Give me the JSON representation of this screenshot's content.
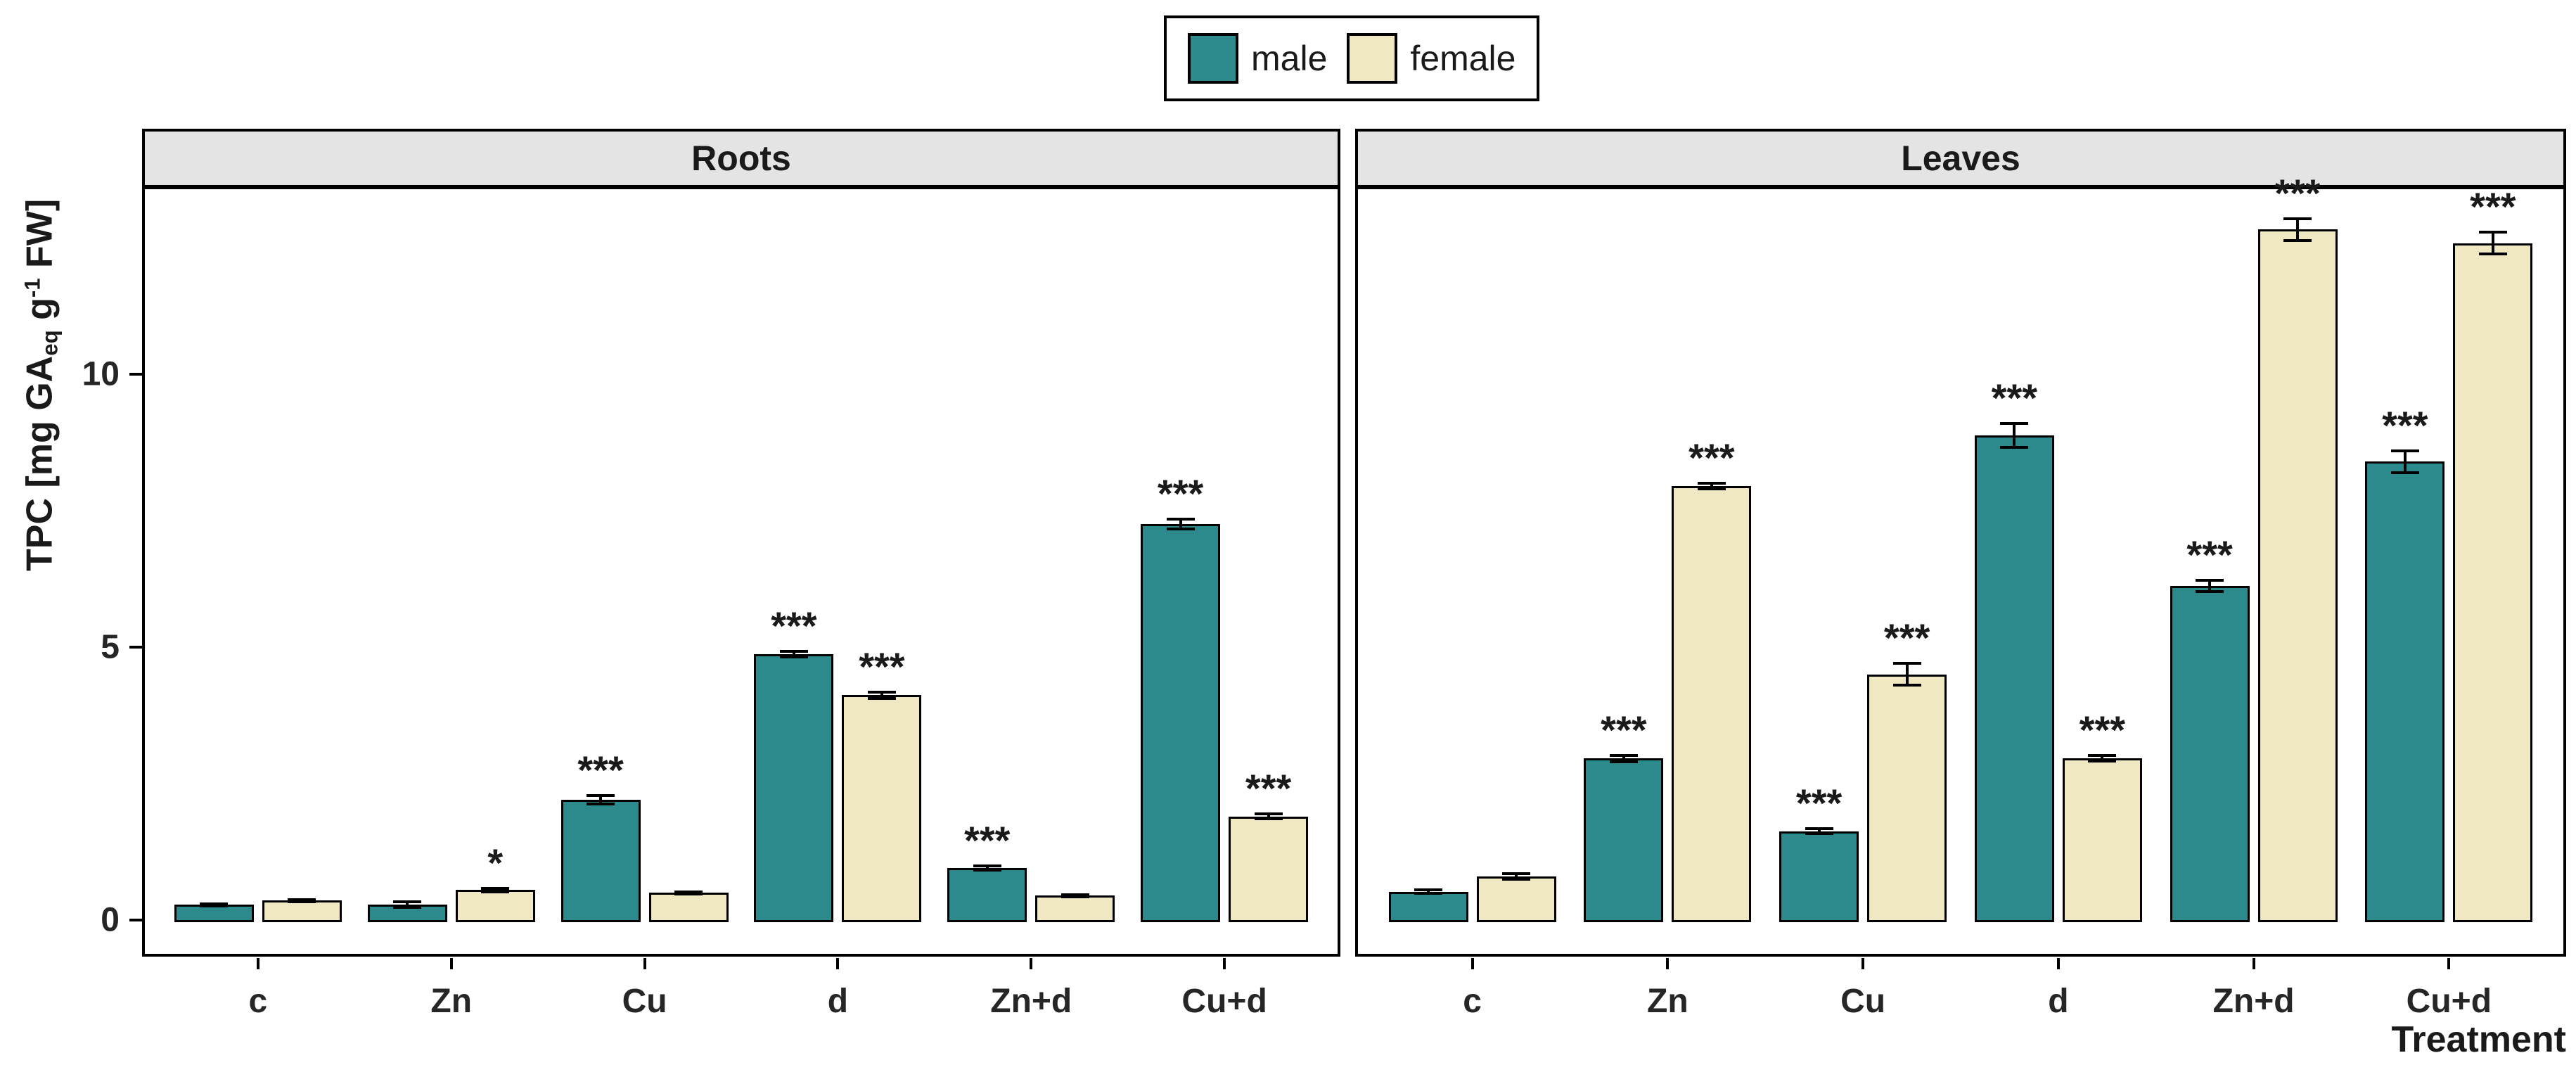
{
  "chart_data": {
    "type": "bar",
    "subtype": "grouped-faceted-bar-with-errorbars",
    "facets": [
      "Roots",
      "Leaves"
    ],
    "categories": [
      "c",
      "Zn",
      "Cu",
      "d",
      "Zn+d",
      "Cu+d"
    ],
    "xlabel": "Treatment",
    "ylabel_parts": {
      "prefix": "TPC [mg GA",
      "subscript": "eq",
      "mid": " g",
      "superscript": "-1",
      "suffix": " FW]"
    },
    "yticks": [
      0,
      5,
      10
    ],
    "ylim": [
      -0.67,
      13.44
    ],
    "grid": false,
    "legend": {
      "position": "top-center",
      "entries": [
        {
          "name": "male",
          "color": "#2D8A8C"
        },
        {
          "name": "female",
          "color": "#EFE8C3"
        }
      ]
    },
    "panels": [
      {
        "facet": "Roots",
        "series": [
          {
            "name": "male",
            "values": [
              0.28,
              0.28,
              2.2,
              4.87,
              0.95,
              7.25
            ],
            "errors": [
              0.02,
              0.05,
              0.08,
              0.05,
              0.04,
              0.09
            ],
            "significance": [
              "",
              "",
              "***",
              "***",
              "***",
              "***"
            ]
          },
          {
            "name": "female",
            "values": [
              0.36,
              0.55,
              0.5,
              4.12,
              0.45,
              1.9
            ],
            "errors": [
              0.02,
              0.03,
              0.02,
              0.06,
              0.02,
              0.05
            ],
            "significance": [
              "",
              "*",
              "",
              "***",
              "",
              "***"
            ]
          }
        ]
      },
      {
        "facet": "Leaves",
        "series": [
          {
            "name": "male",
            "values": [
              0.52,
              2.96,
              1.63,
              8.88,
              6.12,
              8.4
            ],
            "errors": [
              0.03,
              0.06,
              0.05,
              0.22,
              0.1,
              0.2
            ],
            "significance": [
              "",
              "***",
              "***",
              "***",
              "***",
              "***"
            ]
          },
          {
            "name": "female",
            "values": [
              0.8,
              7.95,
              4.5,
              2.96,
              12.65,
              12.4
            ],
            "errors": [
              0.05,
              0.05,
              0.2,
              0.05,
              0.2,
              0.2
            ],
            "significance": [
              "",
              "***",
              "***",
              "***",
              "***",
              "***"
            ]
          }
        ]
      }
    ],
    "style_colors": {
      "male_fill": "#2D8A8C",
      "female_fill": "#EFE8C3",
      "bar_stroke": "#000000",
      "strip_background": "#E4E4E4",
      "panel_background": "#FFFFFF",
      "axis_text": "#262626"
    }
  }
}
